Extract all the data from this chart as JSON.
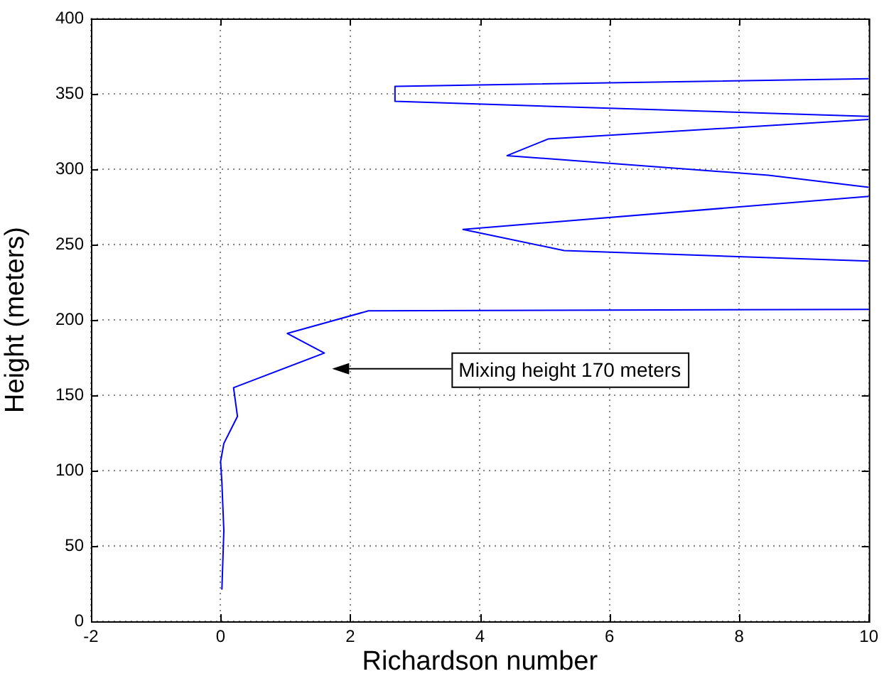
{
  "chart_data": {
    "type": "line",
    "xlabel": "Richardson number",
    "ylabel": "Height (meters)",
    "xlim": [
      -2,
      10
    ],
    "xticks": [
      -2,
      0,
      2,
      4,
      6,
      8,
      10
    ],
    "ylim": [
      0,
      400
    ],
    "yticks": [
      0,
      50,
      100,
      150,
      200,
      250,
      300,
      350,
      400
    ],
    "grid": true,
    "series": [
      {
        "color": "#0000ff",
        "x": [
          0.02,
          0.05,
          0.02,
          0.0,
          0.05,
          0.26,
          0.2,
          1.6,
          1.03,
          2.28,
          10
        ],
        "values": [
          21,
          60,
          92,
          106,
          118,
          136,
          155,
          178,
          191,
          206,
          207
        ]
      },
      {
        "color": "#0000ff",
        "x": [
          10,
          5.3,
          3.74,
          10
        ],
        "values": [
          239,
          246,
          260,
          282
        ]
      },
      {
        "color": "#0000ff",
        "x": [
          10,
          8.45,
          4.42,
          5.05,
          10
        ],
        "values": [
          288,
          296,
          309,
          320,
          333
        ]
      },
      {
        "color": "#0000ff",
        "x": [
          10,
          2.69,
          2.69,
          10
        ],
        "values": [
          335,
          345,
          355,
          360
        ]
      }
    ],
    "annotations": [
      "Mixing height 170 meters"
    ]
  }
}
